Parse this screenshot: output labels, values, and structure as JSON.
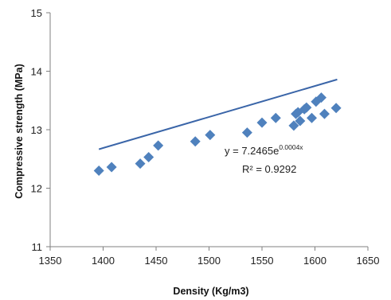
{
  "chart_data": {
    "type": "scatter",
    "title": "",
    "xlabel": "Density (Kg/m3)",
    "ylabel": "Compressive strength (MPa)",
    "xlim": [
      1350,
      1650
    ],
    "ylim": [
      11,
      15
    ],
    "x_ticks": [
      "1350",
      "1400",
      "1450",
      "1500",
      "1550",
      "1600",
      "1650"
    ],
    "y_ticks": [
      "11",
      "12",
      "13",
      "14",
      "15"
    ],
    "grid": false,
    "legend": "none",
    "colors": {
      "marker": "#4F81BD",
      "trendline": "#3A65A8",
      "axis": "#808080"
    },
    "series": [
      {
        "x": [
          1396,
          1408,
          1435,
          1443,
          1452,
          1487,
          1501,
          1536,
          1550,
          1563,
          1580,
          1582,
          1584,
          1586,
          1590,
          1592,
          1597,
          1601,
          1606,
          1609,
          1620
        ],
        "y": [
          12.3,
          12.36,
          12.42,
          12.53,
          12.73,
          12.8,
          12.91,
          12.95,
          13.12,
          13.2,
          13.07,
          13.27,
          13.3,
          13.15,
          13.35,
          13.38,
          13.2,
          13.48,
          13.55,
          13.27,
          13.37
        ]
      }
    ],
    "trendline": {
      "type": "exponential",
      "a": 7.2465,
      "b": 0.0004,
      "x_range": [
        1396,
        1621
      ],
      "equation_main": "y = 7.2465e",
      "equation_exp": "0.0004x",
      "r_squared": "R² = 0.9292"
    }
  }
}
